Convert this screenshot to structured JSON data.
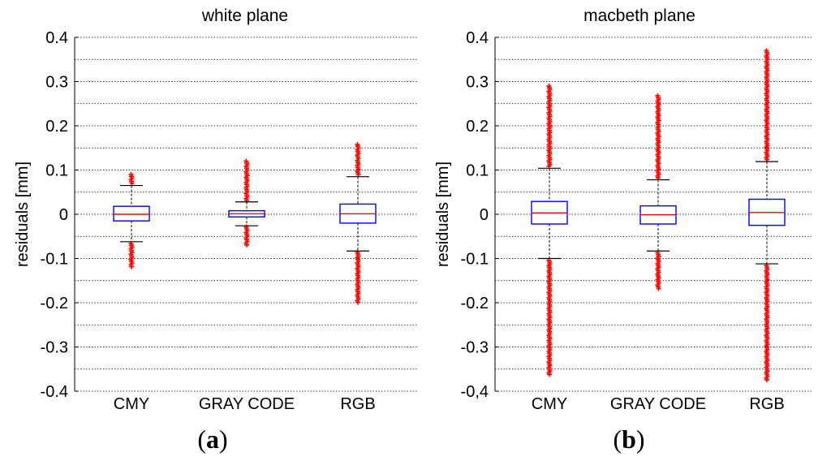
{
  "chart_data": [
    {
      "type": "box",
      "panel_label": "a",
      "title": "white plane",
      "ylabel": "residuals [mm]",
      "ylim": [
        -0.4,
        0.4
      ],
      "yticks": [
        -0.4,
        -0.3,
        -0.2,
        -0.1,
        0,
        0.1,
        0.2,
        0.3,
        0.4
      ],
      "ytick_labels": [
        "-0.4",
        "-0.3",
        "-0.2",
        "-0.1",
        "0",
        "0.1",
        "0.2",
        "0.3",
        "0.4"
      ],
      "grid": true,
      "grid_step": 0.05,
      "categories": [
        "CMY",
        "GRAY CODE",
        "RGB"
      ],
      "colors": {
        "box": "#0000ff",
        "median": "#ff0000",
        "outlier": "#ff0000",
        "whisker": "#000000"
      },
      "boxes": [
        {
          "category": "CMY",
          "q1": -0.015,
          "median": 0.0,
          "q3": 0.018,
          "whisker_low": -0.062,
          "whisker_high": 0.065,
          "outliers": {
            "high": [
              0.068,
              0.09
            ],
            "low": [
              -0.066,
              -0.12
            ]
          }
        },
        {
          "category": "GRAY CODE",
          "q1": -0.006,
          "median": 0.001,
          "q3": 0.008,
          "whisker_low": -0.026,
          "whisker_high": 0.028,
          "outliers": {
            "high": [
              0.031,
              0.12
            ],
            "low": [
              -0.029,
              -0.072
            ]
          }
        },
        {
          "category": "RGB",
          "q1": -0.02,
          "median": 0.001,
          "q3": 0.023,
          "whisker_low": -0.083,
          "whisker_high": 0.085,
          "outliers": {
            "high": [
              0.088,
              0.158
            ],
            "low": [
              -0.086,
              -0.2
            ]
          }
        }
      ]
    },
    {
      "type": "box",
      "panel_label": "b",
      "title": "macbeth plane",
      "ylabel": "residuals [mm]",
      "ylim": [
        -0.4,
        0.4
      ],
      "yticks": [
        -0.4,
        -0.3,
        -0.2,
        -0.1,
        0,
        0.1,
        0.2,
        0.3,
        0.4
      ],
      "ytick_labels": [
        "-0,4",
        "-0.3",
        "-0.2",
        "-0.1",
        "0",
        "0.1",
        "0.2",
        "0.3",
        "0.4"
      ],
      "grid": true,
      "grid_step": 0.05,
      "categories": [
        "CMY",
        "GRAY CODE",
        "RGB"
      ],
      "colors": {
        "box": "#0000ff",
        "median": "#ff0000",
        "outlier": "#ff0000",
        "whisker": "#000000"
      },
      "boxes": [
        {
          "category": "CMY",
          "q1": -0.022,
          "median": 0.003,
          "q3": 0.029,
          "whisker_low": -0.1,
          "whisker_high": 0.104,
          "outliers": {
            "high": [
              0.108,
              0.29
            ],
            "low": [
              -0.104,
              -0.365
            ]
          }
        },
        {
          "category": "GRAY CODE",
          "q1": -0.022,
          "median": -0.001,
          "q3": 0.019,
          "whisker_low": -0.083,
          "whisker_high": 0.078,
          "outliers": {
            "high": [
              0.082,
              0.268
            ],
            "low": [
              -0.087,
              -0.168
            ]
          }
        },
        {
          "category": "RGB",
          "q1": -0.025,
          "median": 0.004,
          "q3": 0.034,
          "whisker_low": -0.112,
          "whisker_high": 0.119,
          "outliers": {
            "high": [
              0.123,
              0.37
            ],
            "low": [
              -0.116,
              -0.375
            ]
          }
        }
      ]
    }
  ]
}
